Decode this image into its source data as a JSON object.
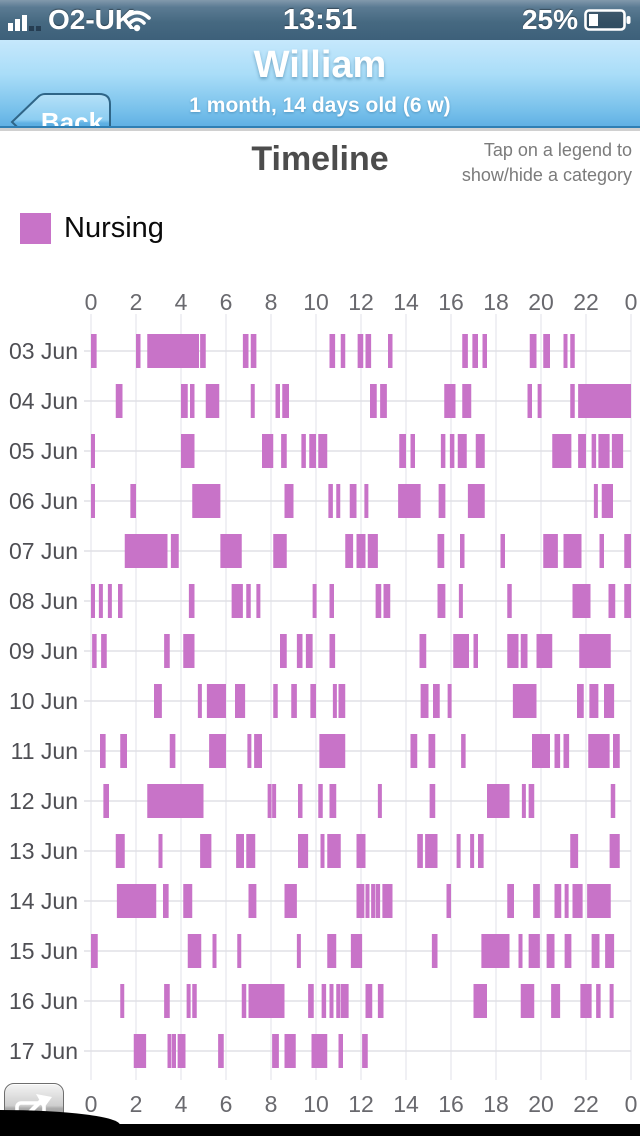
{
  "status_bar": {
    "carrier": "O2-UK",
    "time": "13:51",
    "battery_percent": "25%",
    "icons": [
      "signal-strength-icon",
      "wifi-icon",
      "battery-icon"
    ]
  },
  "nav_bar": {
    "back_label": "Back",
    "title": "William",
    "subtitle": "1 month, 14 days old (6 w)"
  },
  "header": {
    "title": "Timeline",
    "hint_line1": "Tap on a legend to",
    "hint_line2": "show/hide a category"
  },
  "legend": {
    "items": [
      {
        "label": "Nursing",
        "color": "#c873c8",
        "visible": true
      }
    ]
  },
  "colors": {
    "bar": "#c873c8",
    "gridline": "#e2e2e8",
    "row_line": "#e0e0e6",
    "axis_text": "#69696e",
    "date_text": "#4f4f54",
    "nav_top": "#c6e8fc",
    "nav_bottom": "#61b1e4",
    "status_bar": "#46697f"
  },
  "chart_data": {
    "type": "timeline",
    "title": "Timeline",
    "series_name": "Nursing",
    "series_color": "#c873c8",
    "x_unit": "hour of day",
    "x_range": [
      0,
      24
    ],
    "x_tick_hours": [
      0,
      2,
      4,
      6,
      8,
      10,
      12,
      14,
      16,
      18,
      20,
      22,
      24
    ],
    "x_tick_labels": [
      "0",
      "2",
      "4",
      "6",
      "8",
      "10",
      "12",
      "14",
      "16",
      "18",
      "20",
      "22",
      "0"
    ],
    "grid": true,
    "axis_positions": "ticks on top and bottom, dates on left",
    "rows": [
      {
        "date": "03 Jun",
        "intervals": [
          [
            0,
            0.25
          ],
          [
            2.0,
            2.2
          ],
          [
            2.5,
            4.8
          ],
          [
            4.85,
            5.1
          ],
          [
            6.75,
            7.0
          ],
          [
            7.1,
            7.35
          ],
          [
            10.6,
            10.85
          ],
          [
            11.1,
            11.3
          ],
          [
            11.85,
            12.1
          ],
          [
            12.2,
            12.45
          ],
          [
            13.2,
            13.4
          ],
          [
            16.5,
            16.75
          ],
          [
            16.95,
            17.2
          ],
          [
            17.4,
            17.6
          ],
          [
            19.5,
            19.8
          ],
          [
            20.1,
            20.4
          ],
          [
            21.0,
            21.15
          ],
          [
            21.3,
            21.5
          ]
        ]
      },
      {
        "date": "04 Jun",
        "intervals": [
          [
            1.1,
            1.4
          ],
          [
            4.0,
            4.3
          ],
          [
            4.4,
            4.6
          ],
          [
            5.1,
            5.7
          ],
          [
            7.1,
            7.2
          ],
          [
            8.2,
            8.4
          ],
          [
            8.5,
            8.8
          ],
          [
            12.4,
            12.7
          ],
          [
            12.85,
            13.15
          ],
          [
            15.7,
            16.2
          ],
          [
            16.5,
            16.9
          ],
          [
            19.4,
            19.6
          ],
          [
            19.85,
            20.0
          ],
          [
            21.3,
            21.5
          ],
          [
            21.65,
            24.0
          ]
        ]
      },
      {
        "date": "05 Jun",
        "intervals": [
          [
            0,
            0.1
          ],
          [
            4.0,
            4.6
          ],
          [
            7.6,
            8.1
          ],
          [
            8.45,
            8.7
          ],
          [
            9.35,
            9.55
          ],
          [
            9.7,
            10.0
          ],
          [
            10.1,
            10.5
          ],
          [
            13.7,
            14.0
          ],
          [
            14.2,
            14.4
          ],
          [
            15.55,
            15.75
          ],
          [
            15.95,
            16.15
          ],
          [
            16.3,
            16.7
          ],
          [
            17.1,
            17.5
          ],
          [
            20.5,
            21.35
          ],
          [
            21.65,
            22.0
          ],
          [
            22.25,
            22.45
          ],
          [
            22.55,
            23.05
          ],
          [
            23.15,
            23.65
          ]
        ]
      },
      {
        "date": "06 Jun",
        "intervals": [
          [
            0,
            0.1
          ],
          [
            1.75,
            2.0
          ],
          [
            4.5,
            5.75
          ],
          [
            8.6,
            9.0
          ],
          [
            10.55,
            10.75
          ],
          [
            10.9,
            11.05
          ],
          [
            11.5,
            11.8
          ],
          [
            12.15,
            12.3
          ],
          [
            13.65,
            14.65
          ],
          [
            15.45,
            15.75
          ],
          [
            16.75,
            17.5
          ],
          [
            22.35,
            22.5
          ],
          [
            22.7,
            23.2
          ]
        ]
      },
      {
        "date": "07 Jun",
        "intervals": [
          [
            1.5,
            3.4
          ],
          [
            3.55,
            3.9
          ],
          [
            5.75,
            6.7
          ],
          [
            8.1,
            8.7
          ],
          [
            11.3,
            11.65
          ],
          [
            11.8,
            12.2
          ],
          [
            12.3,
            12.75
          ],
          [
            15.4,
            15.7
          ],
          [
            16.4,
            16.6
          ],
          [
            18.2,
            18.4
          ],
          [
            20.1,
            20.75
          ],
          [
            21.0,
            21.8
          ],
          [
            22.6,
            22.8
          ],
          [
            23.7,
            24.0
          ]
        ]
      },
      {
        "date": "08 Jun",
        "intervals": [
          [
            0,
            0.1
          ],
          [
            0.35,
            0.5
          ],
          [
            0.75,
            0.9
          ],
          [
            1.2,
            1.4
          ],
          [
            4.35,
            4.6
          ],
          [
            6.25,
            6.75
          ],
          [
            6.9,
            7.1
          ],
          [
            7.35,
            7.45
          ],
          [
            9.85,
            10.0
          ],
          [
            10.6,
            10.8
          ],
          [
            12.65,
            12.9
          ],
          [
            13.0,
            13.3
          ],
          [
            15.4,
            15.75
          ],
          [
            16.35,
            16.5
          ],
          [
            18.5,
            18.7
          ],
          [
            21.4,
            22.2
          ],
          [
            23.0,
            23.3
          ],
          [
            23.7,
            24.0
          ]
        ]
      },
      {
        "date": "09 Jun",
        "intervals": [
          [
            0.05,
            0.25
          ],
          [
            0.45,
            0.7
          ],
          [
            3.25,
            3.5
          ],
          [
            4.1,
            4.6
          ],
          [
            8.4,
            8.7
          ],
          [
            9.15,
            9.4
          ],
          [
            9.55,
            9.85
          ],
          [
            10.6,
            10.85
          ],
          [
            14.6,
            14.9
          ],
          [
            16.1,
            16.8
          ],
          [
            17.0,
            17.2
          ],
          [
            18.5,
            19.0
          ],
          [
            19.1,
            19.4
          ],
          [
            19.8,
            20.5
          ],
          [
            21.7,
            23.1
          ]
        ]
      },
      {
        "date": "10 Jun",
        "intervals": [
          [
            2.8,
            3.15
          ],
          [
            4.75,
            4.9
          ],
          [
            5.15,
            6.0
          ],
          [
            6.4,
            6.85
          ],
          [
            8.1,
            8.3
          ],
          [
            8.9,
            9.15
          ],
          [
            9.75,
            10.0
          ],
          [
            10.75,
            10.9
          ],
          [
            11.0,
            11.3
          ],
          [
            14.65,
            15.0
          ],
          [
            15.2,
            15.5
          ],
          [
            15.85,
            16.0
          ],
          [
            18.75,
            19.8
          ],
          [
            21.6,
            21.9
          ],
          [
            22.15,
            22.55
          ],
          [
            22.8,
            23.25
          ]
        ]
      },
      {
        "date": "11 Jun",
        "intervals": [
          [
            0.4,
            0.65
          ],
          [
            1.3,
            1.6
          ],
          [
            3.5,
            3.75
          ],
          [
            5.25,
            6.0
          ],
          [
            6.95,
            7.1
          ],
          [
            7.25,
            7.6
          ],
          [
            10.15,
            11.3
          ],
          [
            14.2,
            14.5
          ],
          [
            15.0,
            15.3
          ],
          [
            16.45,
            16.65
          ],
          [
            19.6,
            20.4
          ],
          [
            20.6,
            20.85
          ],
          [
            21.0,
            21.25
          ],
          [
            22.1,
            23.05
          ],
          [
            23.2,
            23.5
          ]
        ]
      },
      {
        "date": "12 Jun",
        "intervals": [
          [
            0.55,
            0.8
          ],
          [
            2.5,
            5.0
          ],
          [
            7.85,
            8.0
          ],
          [
            8.05,
            8.2
          ],
          [
            9.2,
            9.4
          ],
          [
            10.1,
            10.3
          ],
          [
            10.6,
            10.9
          ],
          [
            12.75,
            12.9
          ],
          [
            15.05,
            15.3
          ],
          [
            17.6,
            18.6
          ],
          [
            19.15,
            19.3
          ],
          [
            19.45,
            19.7
          ],
          [
            23.1,
            23.3
          ]
        ]
      },
      {
        "date": "13 Jun",
        "intervals": [
          [
            1.1,
            1.5
          ],
          [
            3.0,
            3.15
          ],
          [
            4.85,
            5.35
          ],
          [
            6.45,
            6.8
          ],
          [
            6.9,
            7.3
          ],
          [
            9.2,
            9.65
          ],
          [
            10.2,
            10.35
          ],
          [
            10.5,
            11.1
          ],
          [
            11.8,
            12.2
          ],
          [
            14.5,
            14.75
          ],
          [
            14.85,
            15.4
          ],
          [
            16.25,
            16.35
          ],
          [
            16.85,
            17.0
          ],
          [
            17.2,
            17.45
          ],
          [
            21.3,
            21.65
          ],
          [
            23.05,
            23.5
          ]
        ]
      },
      {
        "date": "14 Jun",
        "intervals": [
          [
            1.15,
            2.9
          ],
          [
            3.2,
            3.45
          ],
          [
            4.1,
            4.5
          ],
          [
            7.0,
            7.35
          ],
          [
            8.6,
            9.15
          ],
          [
            11.8,
            12.15
          ],
          [
            12.2,
            12.35
          ],
          [
            12.45,
            12.6
          ],
          [
            12.65,
            12.85
          ],
          [
            12.95,
            13.4
          ],
          [
            15.8,
            16.0
          ],
          [
            18.5,
            18.8
          ],
          [
            19.65,
            19.95
          ],
          [
            20.6,
            20.9
          ],
          [
            21.05,
            21.2
          ],
          [
            21.4,
            21.85
          ],
          [
            22.05,
            23.1
          ]
        ]
      },
      {
        "date": "15 Jun",
        "intervals": [
          [
            0,
            0.3
          ],
          [
            4.3,
            4.9
          ],
          [
            5.4,
            5.5
          ],
          [
            6.5,
            6.6
          ],
          [
            9.15,
            9.25
          ],
          [
            10.5,
            10.9
          ],
          [
            11.55,
            12.05
          ],
          [
            15.15,
            15.4
          ],
          [
            17.35,
            18.6
          ],
          [
            19.0,
            19.15
          ],
          [
            19.45,
            19.95
          ],
          [
            20.25,
            20.6
          ],
          [
            21.05,
            21.35
          ],
          [
            22.25,
            22.6
          ],
          [
            22.85,
            23.25
          ]
        ]
      },
      {
        "date": "16 Jun",
        "intervals": [
          [
            1.3,
            1.4
          ],
          [
            3.25,
            3.5
          ],
          [
            4.25,
            4.4
          ],
          [
            4.5,
            4.7
          ],
          [
            6.7,
            6.9
          ],
          [
            7.0,
            8.6
          ],
          [
            9.65,
            9.9
          ],
          [
            10.25,
            10.45
          ],
          [
            10.6,
            10.75
          ],
          [
            10.9,
            11.0
          ],
          [
            11.1,
            11.45
          ],
          [
            12.2,
            12.5
          ],
          [
            12.75,
            13.0
          ],
          [
            17.0,
            17.6
          ],
          [
            19.1,
            19.7
          ],
          [
            20.45,
            20.85
          ],
          [
            21.75,
            22.25
          ],
          [
            22.45,
            22.65
          ],
          [
            23.05,
            23.2
          ]
        ]
      },
      {
        "date": "17 Jun",
        "intervals": [
          [
            1.9,
            2.45
          ],
          [
            3.4,
            3.5
          ],
          [
            3.6,
            3.75
          ],
          [
            3.85,
            4.2
          ],
          [
            5.65,
            5.9
          ],
          [
            8.05,
            8.35
          ],
          [
            8.6,
            9.1
          ],
          [
            9.8,
            10.5
          ],
          [
            11.0,
            11.2
          ],
          [
            12.05,
            12.3
          ]
        ]
      }
    ]
  },
  "footer": {
    "share_icon": "share-export-icon"
  }
}
